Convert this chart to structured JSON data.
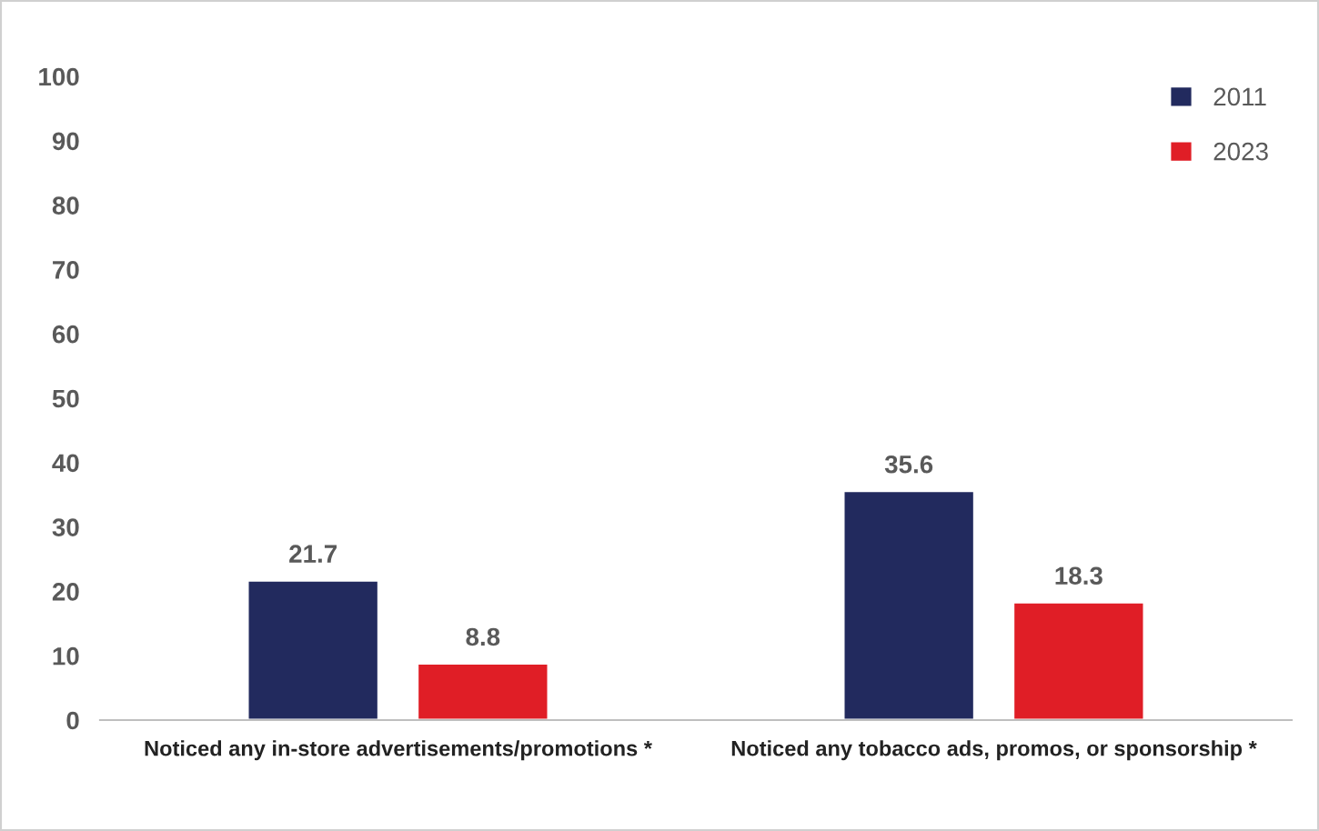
{
  "chart_data": {
    "type": "bar",
    "categories": [
      "Noticed any in-store advertisements/promotions *",
      "Noticed any tobacco ads, promos, or sponsorship *"
    ],
    "series": [
      {
        "name": "2011",
        "color": "#222a5e",
        "values": [
          21.7,
          35.6
        ]
      },
      {
        "name": "2023",
        "color": "#e01e26",
        "values": [
          8.8,
          18.3
        ]
      }
    ],
    "ylim": [
      0,
      100
    ],
    "yticks": [
      0,
      10,
      20,
      30,
      40,
      50,
      60,
      70,
      80,
      90,
      100
    ],
    "data_labels": true,
    "legend": "top right",
    "grid": false
  }
}
